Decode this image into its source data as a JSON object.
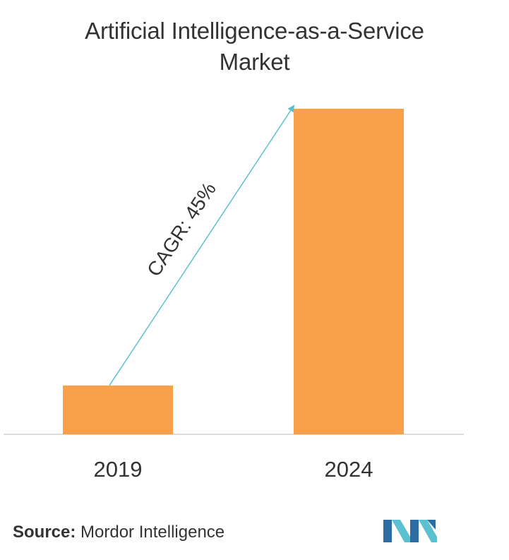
{
  "chart_data": {
    "type": "bar",
    "title_line1": "Artificial Intelligence-as-a-Service",
    "title_line2": "Market",
    "categories": [
      "2019",
      "2024"
    ],
    "values": [
      15,
      100
    ],
    "value_note": "relative bar heights, no axis values printed",
    "ylim": [
      0,
      100
    ],
    "xlabel": "",
    "ylabel": "",
    "grid": false,
    "legend": "none",
    "annotation": "CAGR: 45%",
    "bar_color": "#F9A04A",
    "arrow_color": "#5BC0D0"
  },
  "footer": {
    "source_label": "Source:",
    "source_text": " Mordor Intelligence",
    "logo_icon": "mordor-intelligence-logo-icon"
  }
}
